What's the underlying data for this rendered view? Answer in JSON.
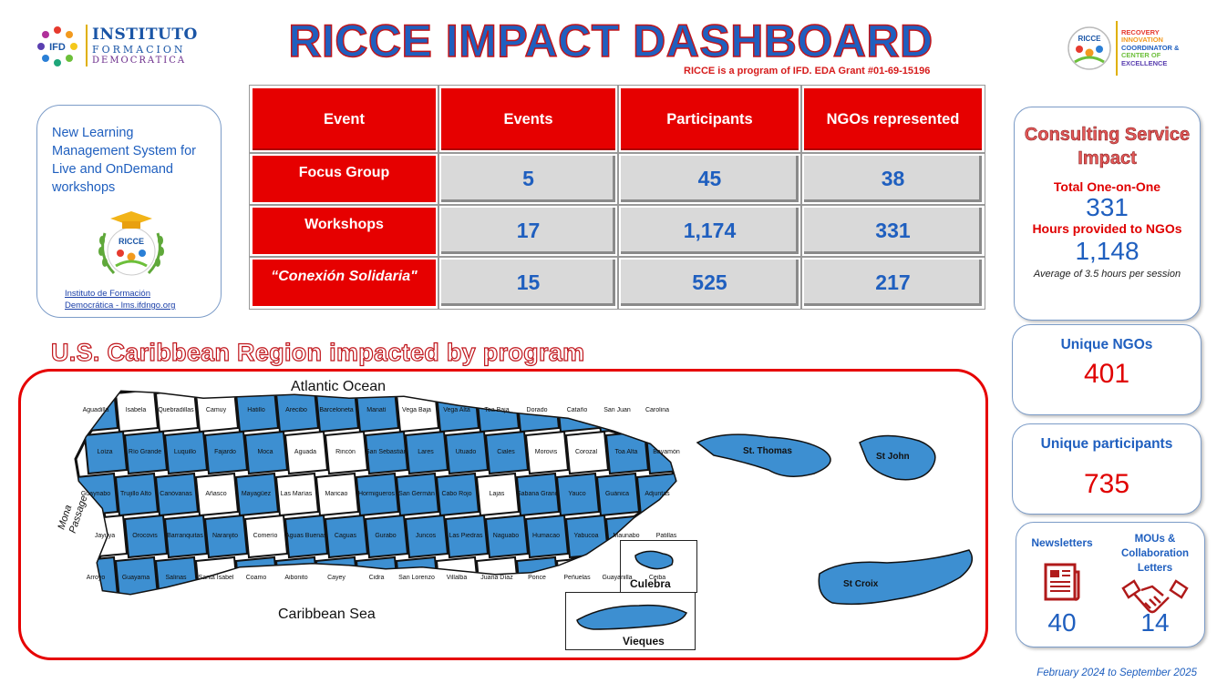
{
  "header": {
    "ifd_logo": {
      "mark": "IFD",
      "line1": "INSTITUTO",
      "line2": "FORMACION",
      "line3": "DEMOCRATICA"
    },
    "title": "RICCE IMPACT DASHBOARD",
    "subtitle": "RICCE is a program of IFD. EDA Grant #01-69-15196",
    "ricce_logo": {
      "mark": "RICCE",
      "lines": [
        "RECOVERY",
        "INNOVATION",
        "COORDINATOR &",
        "CENTER OF",
        "EXCELLENCE"
      ]
    }
  },
  "lms_card": {
    "text": "New Learning Management System for Live and OnDemand workshops",
    "logo_mark": "RICCE",
    "link_line1": "Instituto de Formación",
    "link_line2": "Democrática - lms.ifdngo.org"
  },
  "events_table": {
    "headers": [
      "Event",
      "Events",
      "Participants",
      "NGOs represented"
    ],
    "rows": [
      {
        "event": "Focus Group",
        "events": "5",
        "participants": "45",
        "ngos": "38"
      },
      {
        "event": "Workshops",
        "events": "17",
        "participants": "1,174",
        "ngos": "331"
      },
      {
        "event": "“Conexión Solidaria\"",
        "events": "15",
        "participants": "525",
        "ngos": "217"
      }
    ]
  },
  "consulting": {
    "title_line1": "Consulting Service",
    "title_line2": "Impact",
    "total_label": "Total One-on-One",
    "total_value": "331",
    "hours_label": "Hours provided to NGOs",
    "hours_value": "1,148",
    "note": "Average of 3.5 hours per session"
  },
  "unique_ngos": {
    "label": "Unique NGOs",
    "value": "401"
  },
  "unique_participants": {
    "label": "Unique participants",
    "value": "735"
  },
  "newsletters": {
    "label": "Newsletters",
    "value": "40",
    "icon": "newspaper-icon"
  },
  "mous": {
    "label_line1": "MOUs &",
    "label_line2": "Collaboration",
    "label_line3": "Letters",
    "value": "14",
    "icon": "handshake-icon"
  },
  "map": {
    "title": "U.S. Caribbean Region impacted by program",
    "labels": {
      "atlantic": "Atlantic Ocean",
      "caribbean": "Caribbean Sea",
      "mona_line1": "Mona",
      "mona_line2": "Passage",
      "culebra": "Culebra",
      "vieques": "Vieques",
      "st_thomas": "St. Thomas",
      "st_john": "St John",
      "st_croix": "St Croix"
    },
    "municipalities": [
      "Aguadilla",
      "Isabela",
      "Quebradillas",
      "Camuy",
      "Hatillo",
      "Arecibo",
      "Barceloneta",
      "Manatí",
      "Vega Baja",
      "Vega Alta",
      "Toa Baja",
      "Dorado",
      "Cataño",
      "San Juan",
      "Carolina",
      "Loíza",
      "Río Grande",
      "Luquillo",
      "Fajardo",
      "Moca",
      "Aguada",
      "Rincón",
      "San Sebastián",
      "Lares",
      "Utuado",
      "Ciales",
      "Morovis",
      "Corozal",
      "Toa Alta",
      "Bayamón",
      "Guaynabo",
      "Trujillo Alto",
      "Canóvanas",
      "Añasco",
      "Mayagüez",
      "Las Marías",
      "Maricao",
      "Hormigueros",
      "San Germán",
      "Cabo Rojo",
      "Lajas",
      "Sabana Grande",
      "Yauco",
      "Guánica",
      "Adjuntas",
      "Jayuya",
      "Orocovis",
      "Barranquitas",
      "Naranjito",
      "Comerío",
      "Aguas Buenas",
      "Caguas",
      "Gurabo",
      "Juncos",
      "Las Piedras",
      "Naguabo",
      "Humacao",
      "Yabucoa",
      "Maunabo",
      "Patillas",
      "Arroyo",
      "Guayama",
      "Salinas",
      "Santa Isabel",
      "Coamo",
      "Aibonito",
      "Cayey",
      "Cidra",
      "San Lorenzo",
      "Villalba",
      "Juana Díaz",
      "Ponce",
      "Peñuelas",
      "Guayanilla",
      "Ceiba"
    ]
  },
  "footer": "February 2024 to September 2025",
  "colors": {
    "red": "#e60000",
    "blue": "#1f5fbf",
    "map_fill": "#3d8fd1",
    "gray_cell": "#d9d9d9"
  }
}
